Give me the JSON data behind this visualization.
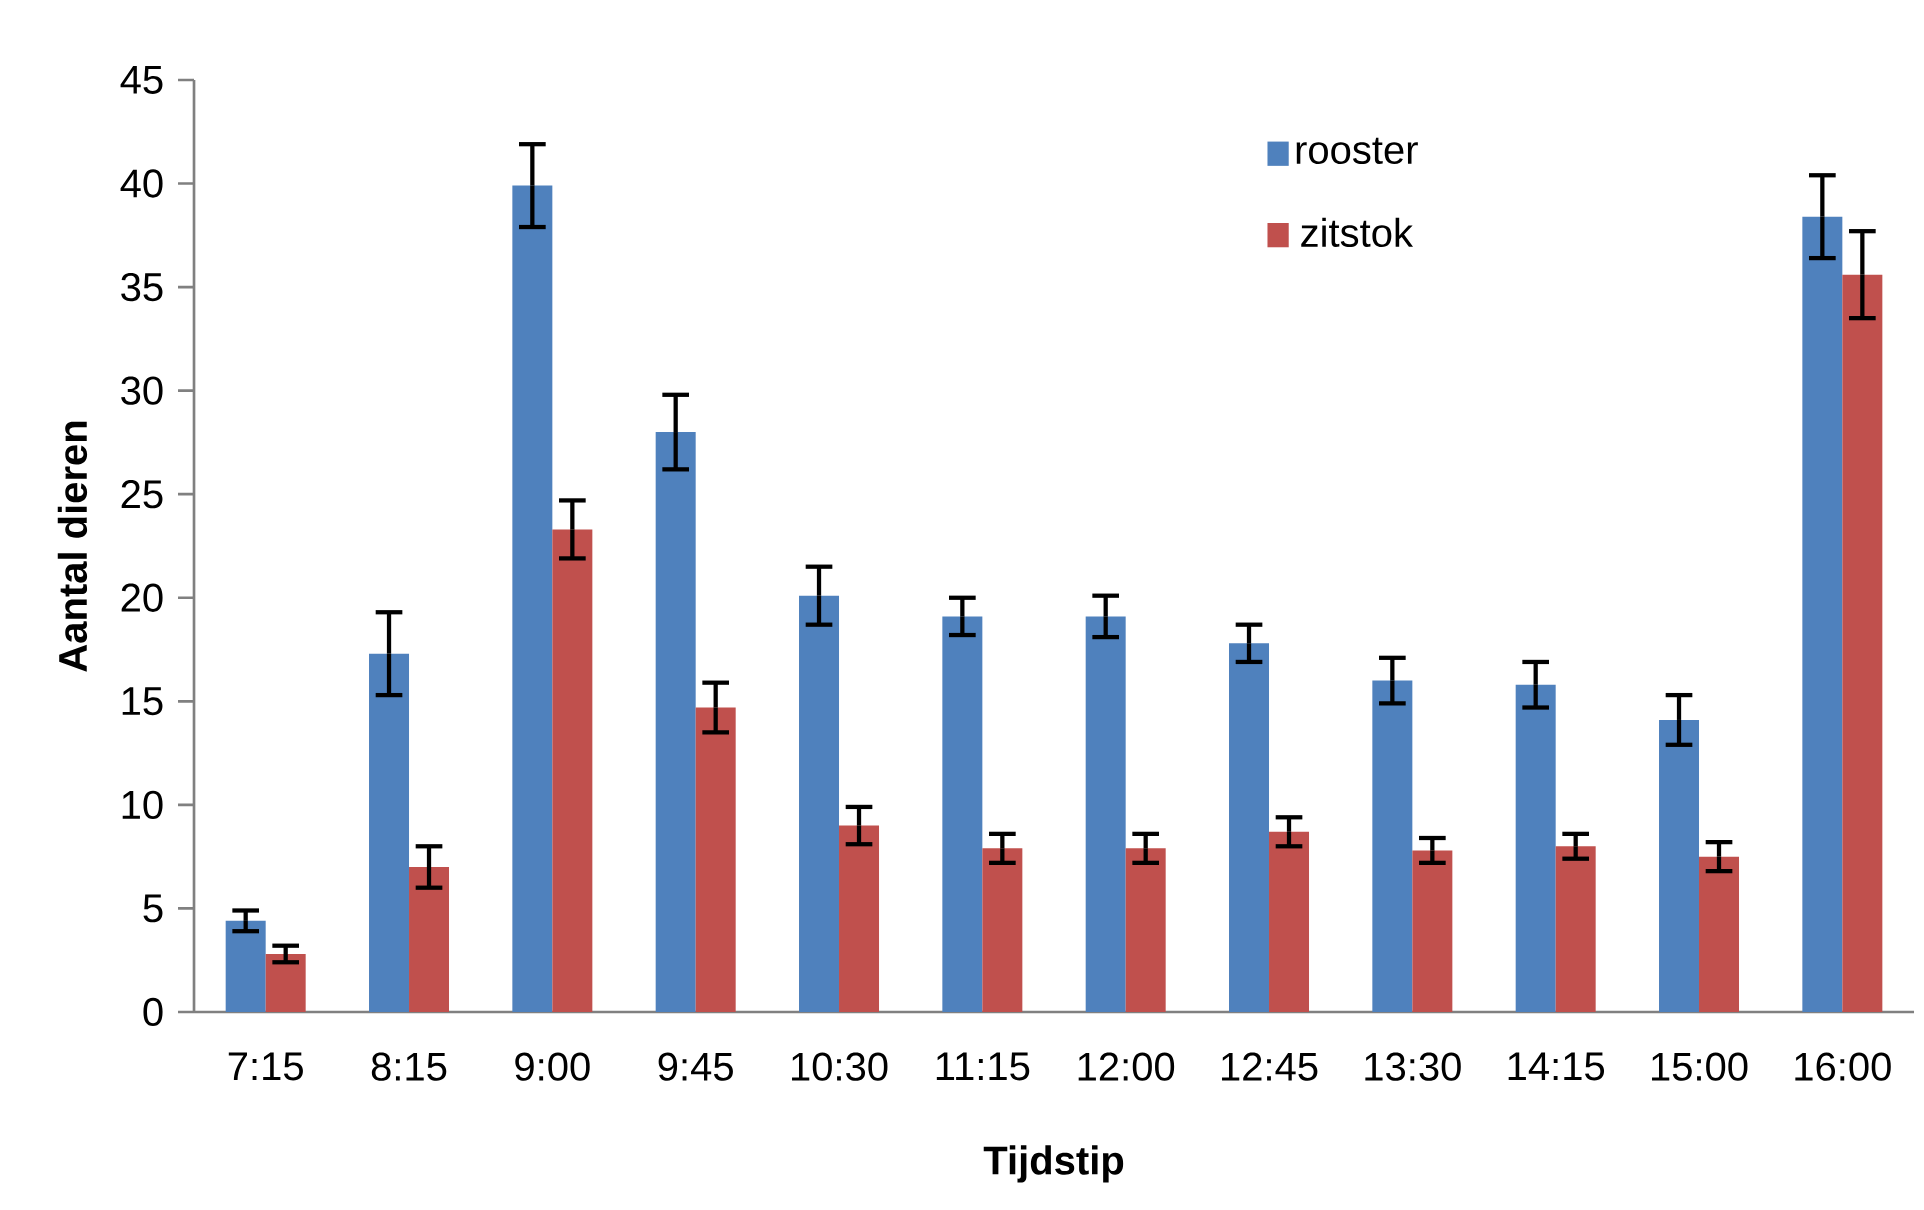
{
  "chart_data": {
    "type": "bar",
    "xlabel": "Tijdstip",
    "ylabel": "Aantal dieren",
    "categories": [
      "7:15",
      "8:15",
      "9:00",
      "9:45",
      "10:30",
      "11:15",
      "12:00",
      "12:45",
      "13:30",
      "14:15",
      "15:00",
      "16:00"
    ],
    "series": [
      {
        "name": "rooster",
        "color": "#4f81bd",
        "values": [
          4.4,
          17.3,
          39.9,
          28.0,
          20.1,
          19.1,
          19.1,
          17.8,
          16.0,
          15.8,
          14.1,
          38.4
        ],
        "errors": [
          0.5,
          2.0,
          2.0,
          1.8,
          1.4,
          0.9,
          1.0,
          0.9,
          1.1,
          1.1,
          1.2,
          2.0
        ]
      },
      {
        "name": "zitstok",
        "color": "#c0504d",
        "values": [
          2.8,
          7.0,
          23.3,
          14.7,
          9.0,
          7.9,
          7.9,
          8.7,
          7.8,
          8.0,
          7.5,
          35.6
        ],
        "errors": [
          0.4,
          1.0,
          1.4,
          1.2,
          0.9,
          0.7,
          0.7,
          0.7,
          0.6,
          0.6,
          0.7,
          2.1
        ]
      }
    ],
    "ylim": [
      0,
      45
    ],
    "yticks": [
      0,
      5,
      10,
      15,
      20,
      25,
      30,
      35,
      40,
      45
    ],
    "grid": false,
    "legend": "top right"
  }
}
